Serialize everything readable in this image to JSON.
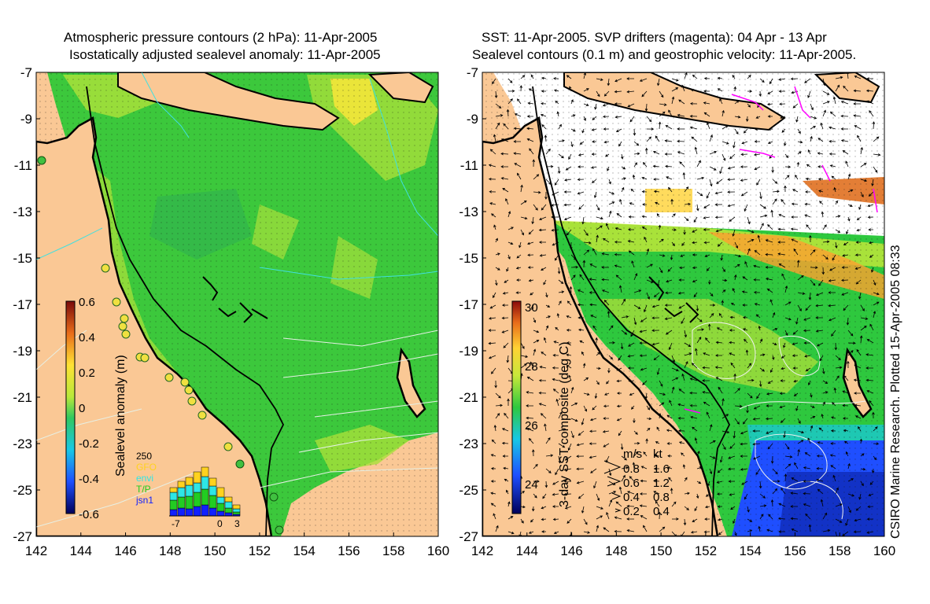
{
  "left_panel": {
    "title_line1": "Atmospheric pressure contours (2 hPa): 11-Apr-2005",
    "title_line2": "Isostatically adjusted sealevel anomaly: 11-Apr-2005",
    "colorbar_label": "Sealevel anomaly (m)",
    "colorbar_ticks": [
      "0.6",
      "0.4",
      "0.2",
      "0",
      "-0.2",
      "-0.4",
      "-0.6"
    ],
    "inset": {
      "top_label": "250",
      "legend": [
        {
          "label": "GFO",
          "color": "#ffd21e"
        },
        {
          "label": "envi",
          "color": "#2ee6e6"
        },
        {
          "label": "T/P",
          "color": "#22cc22"
        },
        {
          "label": "jsn1",
          "color": "#1020ff"
        }
      ],
      "x_ticks": [
        "-7",
        "0",
        "3"
      ]
    }
  },
  "right_panel": {
    "title_line1": "SST: 11-Apr-2005. SVP drifters (magenta): 04 Apr - 13 Apr",
    "title_line2": "Sealevel contours (0.1 m) and geostrophic velocity: 11-Apr-2005.",
    "colorbar_label": "3-day SST composite (deg C)",
    "colorbar_ticks": [
      "30",
      "28",
      "26",
      "24"
    ],
    "velocity_key": {
      "header_ms": "m/s",
      "header_kt": "kt",
      "rows": [
        {
          "ms": "0.8",
          "kt": "1.6"
        },
        {
          "ms": "0.6",
          "kt": "1.2"
        },
        {
          "ms": "0.4",
          "kt": "0.8"
        },
        {
          "ms": "0.2",
          "kt": "0.4"
        }
      ]
    },
    "credit": "CSIRO Marine Research. Plotted 15-Apr-2005 08:33"
  },
  "axes": {
    "lon_ticks": [
      "142",
      "144",
      "146",
      "148",
      "150",
      "152",
      "154",
      "156",
      "158",
      "160"
    ],
    "lat_ticks": [
      "-7",
      "-9",
      "-11",
      "-13",
      "-15",
      "-17",
      "-19",
      "-21",
      "-23",
      "-25",
      "-27"
    ]
  },
  "colors": {
    "land": "#fac895",
    "ocean_anomaly": "#3cc83c",
    "cloud_mask": "#ffffff",
    "coast": "#000000",
    "drifter": "#ff00ff"
  }
}
